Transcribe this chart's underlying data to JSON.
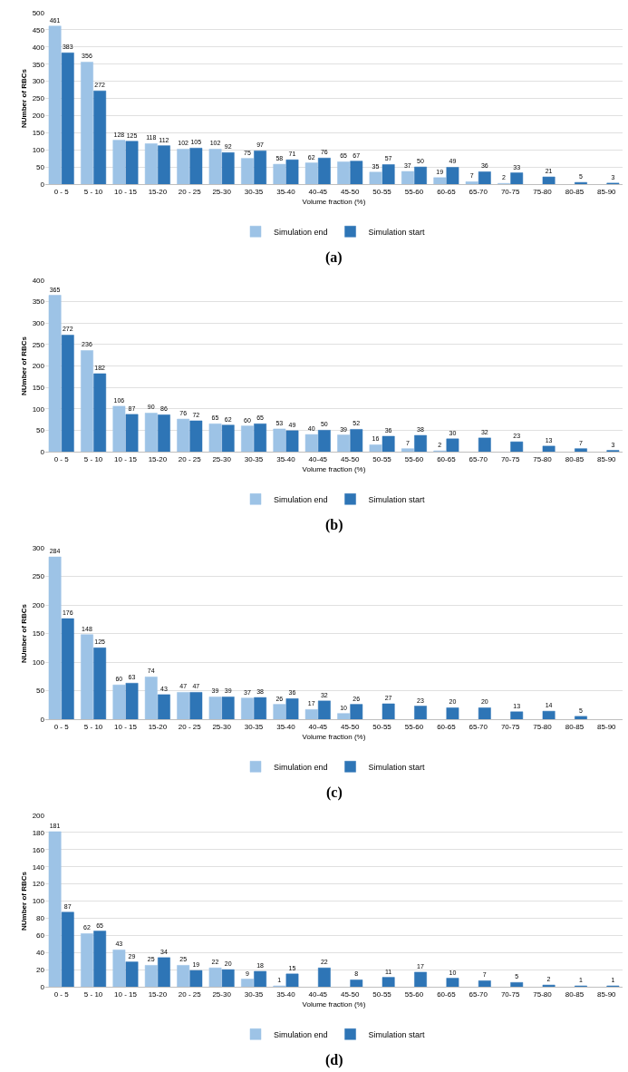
{
  "chart_data": [
    {
      "type": "bar",
      "annotations": [
        "(a)"
      ],
      "xlabel": "Volume fraction (%)",
      "ylabel": "NUmber of RBCs",
      "categories": [
        "0 - 5",
        "5 - 10",
        "10 - 15",
        "15-20",
        "20 - 25",
        "25-30",
        "30-35",
        "35-40",
        "40-45",
        "45-50",
        "50-55",
        "55-60",
        "60-65",
        "65-70",
        "70-75",
        "75-80",
        "80-85",
        "85-90"
      ],
      "series": [
        {
          "name": "Simulation end",
          "color": "#9dc3e6",
          "values": [
            461,
            356,
            128,
            118,
            102,
            102,
            75,
            58,
            62,
            65,
            35,
            37,
            19,
            7,
            2,
            null,
            null,
            null
          ]
        },
        {
          "name": "Simulation start",
          "color": "#2e75b6",
          "values": [
            383,
            272,
            125,
            112,
            105,
            92,
            97,
            71,
            76,
            67,
            57,
            50,
            49,
            36,
            33,
            21,
            5,
            3
          ]
        }
      ],
      "ylim": [
        0,
        500
      ],
      "yticks": [
        0,
        50,
        100,
        150,
        200,
        250,
        300,
        350,
        400,
        450,
        500
      ],
      "grid": "y",
      "legend": "bottom",
      "data_labels": true
    },
    {
      "type": "bar",
      "annotations": [
        "(b)"
      ],
      "xlabel": "Volume fraction (%)",
      "ylabel": "NUmber of RBCs",
      "categories": [
        "0 - 5",
        "5 - 10",
        "10 - 15",
        "15-20",
        "20 - 25",
        "25-30",
        "30-35",
        "35-40",
        "40-45",
        "45-50",
        "50-55",
        "55-60",
        "60-65",
        "65-70",
        "70-75",
        "75-80",
        "80-85",
        "85-90"
      ],
      "series": [
        {
          "name": "Simulation end",
          "color": "#9dc3e6",
          "values": [
            365,
            236,
            106,
            90,
            76,
            65,
            60,
            53,
            40,
            39,
            16,
            7,
            2,
            null,
            null,
            null,
            null,
            null
          ]
        },
        {
          "name": "Simulation start",
          "color": "#2e75b6",
          "values": [
            272,
            182,
            87,
            86,
            72,
            62,
            65,
            49,
            50,
            52,
            36,
            38,
            30,
            32,
            23,
            13,
            7,
            3
          ]
        }
      ],
      "ylim": [
        0,
        400
      ],
      "yticks": [
        0,
        50,
        100,
        150,
        200,
        250,
        300,
        350,
        400
      ],
      "grid": "y",
      "legend": "bottom",
      "data_labels": true
    },
    {
      "type": "bar",
      "annotations": [
        "(c)"
      ],
      "xlabel": "Volume fraction (%)",
      "ylabel": "NUmber of RBCs",
      "categories": [
        "0 - 5",
        "5 - 10",
        "10 - 15",
        "15-20",
        "20 - 25",
        "25-30",
        "30-35",
        "35-40",
        "40-45",
        "45-50",
        "50-55",
        "55-60",
        "60-65",
        "65-70",
        "70-75",
        "75-80",
        "80-85",
        "85-90"
      ],
      "series": [
        {
          "name": "Simulation end",
          "color": "#9dc3e6",
          "values": [
            284,
            148,
            60,
            74,
            47,
            39,
            37,
            26,
            17,
            10,
            null,
            null,
            null,
            null,
            null,
            null,
            null,
            null
          ]
        },
        {
          "name": "Simulation start",
          "color": "#2e75b6",
          "values": [
            176,
            125,
            63,
            43,
            47,
            39,
            38,
            36,
            32,
            26,
            27,
            23,
            20,
            20,
            13,
            14,
            5,
            null
          ]
        }
      ],
      "ylim": [
        0,
        300
      ],
      "yticks": [
        0,
        50,
        100,
        150,
        200,
        250,
        300
      ],
      "grid": "y",
      "legend": "bottom",
      "data_labels": true
    },
    {
      "type": "bar",
      "annotations": [
        "(d)"
      ],
      "xlabel": "Volume fraction (%)",
      "ylabel": "NUmber of RBCs",
      "categories": [
        "0 - 5",
        "5 - 10",
        "10 - 15",
        "15-20",
        "20 - 25",
        "25-30",
        "30-35",
        "35-40",
        "40-45",
        "45-50",
        "50-55",
        "55-60",
        "60-65",
        "65-70",
        "70-75",
        "75-80",
        "80-85",
        "85-90"
      ],
      "series": [
        {
          "name": "Simulation end",
          "color": "#9dc3e6",
          "values": [
            181,
            62,
            43,
            25,
            25,
            22,
            9,
            1,
            null,
            null,
            null,
            null,
            null,
            null,
            null,
            null,
            null,
            null
          ]
        },
        {
          "name": "Simulation start",
          "color": "#2e75b6",
          "values": [
            87,
            65,
            29,
            34,
            19,
            20,
            18,
            15,
            22,
            8,
            11,
            17,
            10,
            7,
            5,
            2,
            1,
            1
          ]
        }
      ],
      "ylim": [
        0,
        200
      ],
      "yticks": [
        0,
        20,
        40,
        60,
        80,
        100,
        120,
        140,
        160,
        180,
        200
      ],
      "grid": "y",
      "legend": "bottom",
      "data_labels": true
    }
  ]
}
